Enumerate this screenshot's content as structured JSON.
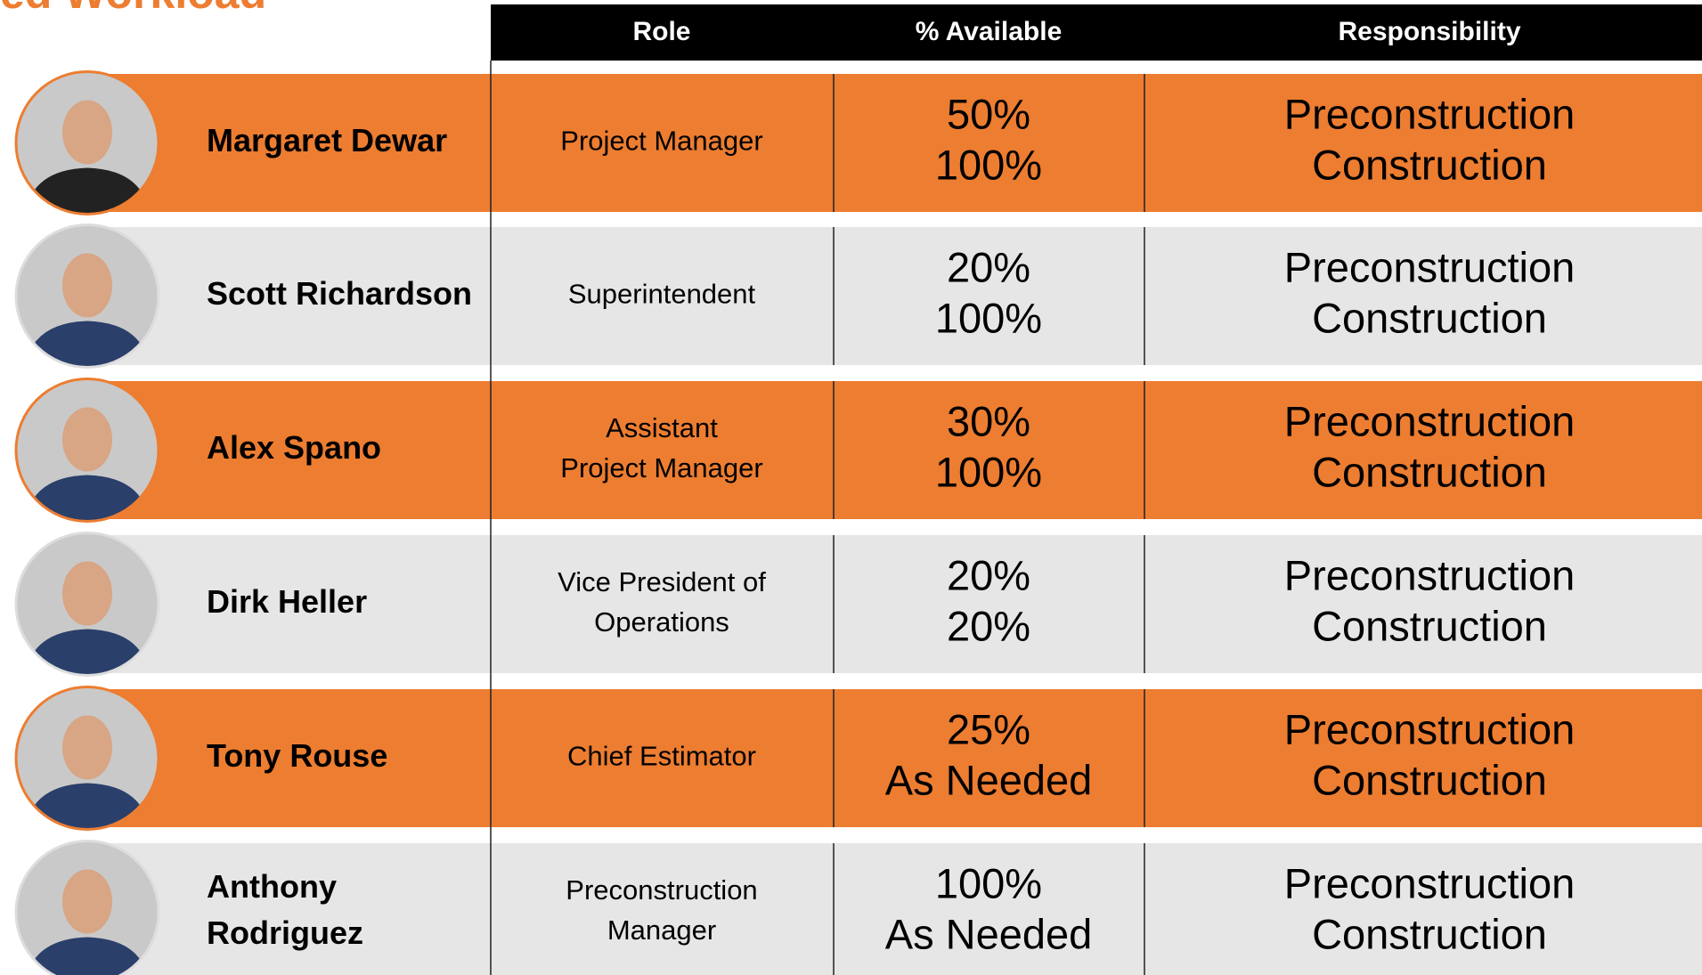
{
  "title": "ed Workload",
  "header": {
    "role": "Role",
    "available": "% Available",
    "responsibility": "Responsibility"
  },
  "rows": [
    {
      "name": [
        "Margaret Dewar"
      ],
      "role": [
        "Project Manager"
      ],
      "available": [
        "50%",
        "100%"
      ],
      "responsibility": [
        "Preconstruction",
        "Construction"
      ]
    },
    {
      "name": [
        "Scott Richardson"
      ],
      "role": [
        "Superintendent"
      ],
      "available": [
        "20%",
        "100%"
      ],
      "responsibility": [
        "Preconstruction",
        "Construction"
      ]
    },
    {
      "name": [
        "Alex Spano"
      ],
      "role": [
        "Assistant",
        "Project Manager"
      ],
      "available": [
        "30%",
        "100%"
      ],
      "responsibility": [
        "Preconstruction",
        "Construction"
      ]
    },
    {
      "name": [
        "Dirk Heller"
      ],
      "role": [
        "Vice President of",
        "Operations"
      ],
      "available": [
        "20%",
        "20%"
      ],
      "responsibility": [
        "Preconstruction",
        "Construction"
      ]
    },
    {
      "name": [
        "Tony Rouse"
      ],
      "role": [
        "Chief Estimator"
      ],
      "available": [
        "25%",
        "As Needed"
      ],
      "responsibility": [
        "Preconstruction",
        "Construction"
      ]
    },
    {
      "name": [
        "Anthony",
        "Rodriguez"
      ],
      "role": [
        "Preconstruction",
        "Manager"
      ],
      "available": [
        "100%",
        "As Needed"
      ],
      "responsibility": [
        "Preconstruction",
        "Construction"
      ]
    }
  ]
}
